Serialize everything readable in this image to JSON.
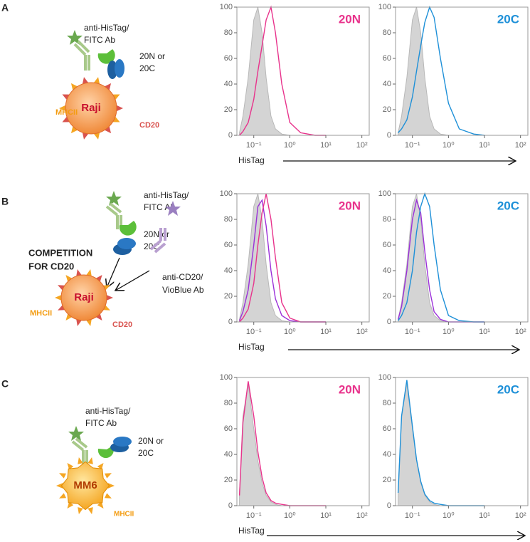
{
  "chart_data": [
    {
      "type": "line",
      "label": "20N",
      "xlabel": "HisTag",
      "log_x": true,
      "xlim": [
        0.034,
        160
      ],
      "ylim": [
        0,
        100
      ],
      "xticks": [
        {
          "value": 0.1,
          "label": "10⁻¹"
        },
        {
          "value": 1,
          "label": "10⁰"
        },
        {
          "value": 10,
          "label": "10¹"
        },
        {
          "value": 100,
          "label": "10²"
        }
      ],
      "yticks": [
        0,
        20,
        40,
        60,
        80,
        100
      ],
      "x": [
        0.04,
        0.05,
        0.07,
        0.1,
        0.13,
        0.17,
        0.22,
        0.3,
        0.4,
        0.6,
        1,
        2,
        5,
        10
      ],
      "series": [
        {
          "color": "#d4d4d4",
          "fill": true,
          "values": [
            2,
            15,
            45,
            90,
            100,
            80,
            45,
            15,
            5,
            1,
            0,
            0,
            0,
            0
          ]
        },
        {
          "color": "#e8338c",
          "fill": false,
          "values": [
            0,
            3,
            10,
            28,
            50,
            70,
            90,
            100,
            80,
            40,
            10,
            2,
            0,
            0
          ]
        }
      ]
    },
    {
      "type": "line",
      "label": "20C",
      "log_x": true,
      "xlim": [
        0.034,
        160
      ],
      "ylim": [
        0,
        100
      ],
      "xticks": [
        {
          "value": 0.1,
          "label": "10⁻¹"
        },
        {
          "value": 1,
          "label": "10⁰"
        },
        {
          "value": 10,
          "label": "10¹"
        },
        {
          "value": 100,
          "label": "10²"
        }
      ],
      "yticks": [
        0,
        20,
        40,
        60,
        80,
        100
      ],
      "x": [
        0.04,
        0.05,
        0.07,
        0.1,
        0.13,
        0.17,
        0.22,
        0.3,
        0.4,
        0.6,
        1,
        2,
        5,
        10
      ],
      "series": [
        {
          "color": "#d4d4d4",
          "fill": true,
          "values": [
            2,
            15,
            45,
            90,
            100,
            80,
            45,
            15,
            5,
            1,
            0,
            0,
            0,
            0
          ]
        },
        {
          "color": "#1e90d8",
          "fill": false,
          "values": [
            2,
            5,
            12,
            30,
            50,
            70,
            88,
            100,
            92,
            60,
            25,
            5,
            1,
            0
          ]
        }
      ]
    },
    {
      "type": "line",
      "label": "20N",
      "xlabel": "HisTag",
      "log_x": true,
      "xlim": [
        0.034,
        160
      ],
      "ylim": [
        0,
        100
      ],
      "xticks": [
        {
          "value": 0.1,
          "label": "10⁻¹"
        },
        {
          "value": 1,
          "label": "10⁰"
        },
        {
          "value": 10,
          "label": "10¹"
        },
        {
          "value": 100,
          "label": "10²"
        }
      ],
      "yticks": [
        0,
        20,
        40,
        60,
        80,
        100
      ],
      "x": [
        0.04,
        0.05,
        0.07,
        0.1,
        0.13,
        0.17,
        0.22,
        0.3,
        0.4,
        0.6,
        1,
        2,
        5,
        10
      ],
      "series": [
        {
          "color": "#d4d4d4",
          "fill": true,
          "values": [
            2,
            15,
            45,
            90,
            100,
            80,
            45,
            15,
            5,
            1,
            0,
            0,
            0,
            0
          ]
        },
        {
          "color": "#9b30d9",
          "fill": false,
          "values": [
            1,
            8,
            25,
            60,
            90,
            95,
            75,
            40,
            18,
            5,
            1,
            0,
            0,
            0
          ]
        },
        {
          "color": "#e8338c",
          "fill": false,
          "values": [
            0,
            3,
            10,
            30,
            60,
            85,
            100,
            80,
            50,
            15,
            3,
            0,
            0,
            0
          ]
        }
      ]
    },
    {
      "type": "line",
      "label": "20C",
      "log_x": true,
      "xlim": [
        0.034,
        160
      ],
      "ylim": [
        0,
        100
      ],
      "xticks": [
        {
          "value": 0.1,
          "label": "10⁻¹"
        },
        {
          "value": 1,
          "label": "10⁰"
        },
        {
          "value": 10,
          "label": "10¹"
        },
        {
          "value": 100,
          "label": "10²"
        }
      ],
      "yticks": [
        0,
        20,
        40,
        60,
        80,
        100
      ],
      "x": [
        0.04,
        0.05,
        0.07,
        0.1,
        0.13,
        0.17,
        0.22,
        0.3,
        0.4,
        0.6,
        1,
        2,
        5,
        10
      ],
      "series": [
        {
          "color": "#d4d4d4",
          "fill": true,
          "values": [
            2,
            15,
            45,
            90,
            100,
            80,
            45,
            15,
            5,
            1,
            0,
            0,
            0,
            0
          ]
        },
        {
          "color": "#9b30d9",
          "fill": false,
          "values": [
            2,
            12,
            40,
            80,
            95,
            85,
            55,
            25,
            8,
            2,
            0,
            0,
            0,
            0
          ]
        },
        {
          "color": "#1e90d8",
          "fill": false,
          "values": [
            1,
            5,
            15,
            40,
            70,
            90,
            100,
            90,
            60,
            25,
            5,
            1,
            0,
            0
          ]
        }
      ]
    },
    {
      "type": "line",
      "label": "20N",
      "xlabel": "HisTag",
      "log_x": true,
      "xlim": [
        0.034,
        160
      ],
      "ylim": [
        0,
        100
      ],
      "xticks": [
        {
          "value": 0.1,
          "label": "10⁻¹"
        },
        {
          "value": 1,
          "label": "10⁰"
        },
        {
          "value": 10,
          "label": "10¹"
        },
        {
          "value": 100,
          "label": "10²"
        }
      ],
      "yticks": [
        0,
        20,
        40,
        60,
        80,
        100
      ],
      "x": [
        0.04,
        0.05,
        0.07,
        0.1,
        0.13,
        0.17,
        0.22,
        0.3,
        0.4,
        0.6,
        1,
        2,
        5,
        10
      ],
      "series": [
        {
          "color": "#d4d4d4",
          "fill": true,
          "values": [
            10,
            70,
            95,
            60,
            35,
            18,
            8,
            3,
            1,
            0,
            0,
            0,
            0,
            0
          ]
        },
        {
          "color": "#e8338c",
          "fill": false,
          "values": [
            8,
            65,
            97,
            70,
            42,
            22,
            10,
            4,
            2,
            1,
            0,
            0,
            0,
            0
          ]
        }
      ]
    },
    {
      "type": "line",
      "label": "20C",
      "log_x": true,
      "xlim": [
        0.034,
        160
      ],
      "ylim": [
        0,
        100
      ],
      "xticks": [
        {
          "value": 0.1,
          "label": "10⁻¹"
        },
        {
          "value": 1,
          "label": "10⁰"
        },
        {
          "value": 10,
          "label": "10¹"
        },
        {
          "value": 100,
          "label": "10²"
        }
      ],
      "yticks": [
        0,
        20,
        40,
        60,
        80,
        100
      ],
      "x": [
        0.04,
        0.05,
        0.07,
        0.1,
        0.13,
        0.17,
        0.22,
        0.3,
        0.4,
        0.6,
        1,
        2,
        5,
        10
      ],
      "series": [
        {
          "color": "#d4d4d4",
          "fill": true,
          "values": [
            10,
            70,
            95,
            60,
            35,
            18,
            8,
            3,
            1,
            0,
            0,
            0,
            0,
            0
          ]
        },
        {
          "color": "#1e90d8",
          "fill": false,
          "values": [
            10,
            70,
            98,
            62,
            36,
            19,
            9,
            4,
            2,
            1,
            0,
            0,
            0,
            0
          ]
        }
      ]
    }
  ],
  "diagrams": [
    {
      "letter": "A",
      "ab_lines": [
        "anti-HisTag/",
        "FITC Ab"
      ],
      "protein_lines": [
        "20N or",
        "20C"
      ],
      "cell": "Raji",
      "mhc": "MHCII",
      "cd": "CD20"
    },
    {
      "letter": "B",
      "ab_lines": [
        "anti-HisTag/",
        "FITC Ab"
      ],
      "protein_lines": [
        "20N or",
        "20C"
      ],
      "competition_lines": [
        "COMPETITION",
        "FOR CD20"
      ],
      "blocker_lines": [
        "anti-CD20/",
        "VioBlue Ab"
      ],
      "cell": "Raji",
      "mhc": "MHCII",
      "cd": "CD20"
    },
    {
      "letter": "C",
      "ab_lines": [
        "anti-HisTag/",
        "FITC Ab"
      ],
      "protein_lines": [
        "20N or",
        "20C"
      ],
      "cell": "MM6",
      "mhc": "MHCII"
    }
  ]
}
